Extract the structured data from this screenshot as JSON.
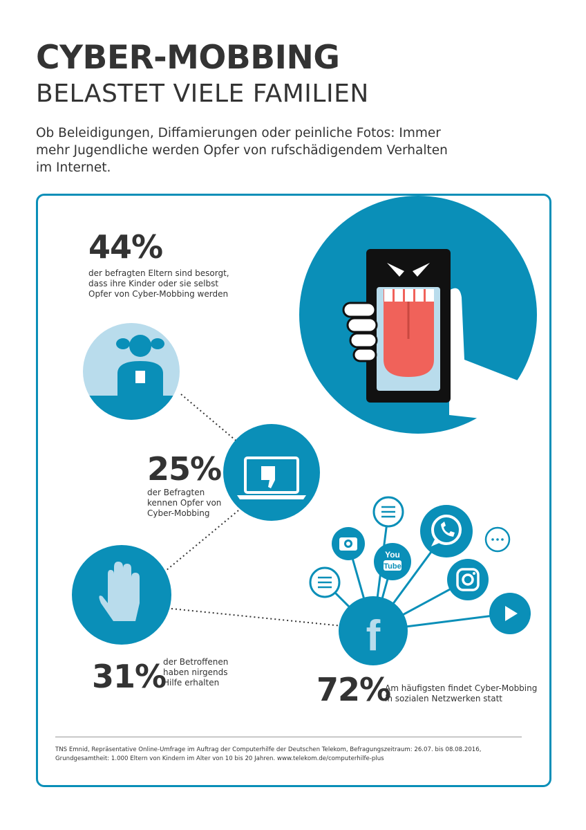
{
  "header": {
    "title": "CYBER-MOBBING",
    "subtitle": "BELASTET VIELE FAMILIEN",
    "intro": "Ob Beleidigungen, Diffamierungen oder peinliche Fotos: Immer mehr Jugendliche werden Opfer von rufschädigendem Verhalten im Internet."
  },
  "stats": [
    {
      "value": "44%",
      "text": "der befragten Eltern sind besorgt, dass ihre Kinder oder sie selbst Opfer von Cyber-Mobbing werden"
    },
    {
      "value": "25%",
      "text": "der Befragten kennen Opfer von Cyber-Mobbing"
    },
    {
      "value": "31%",
      "text": "der Betroffenen haben nirgends Hilfe erhalten"
    },
    {
      "value": "72%",
      "text": "Am häufigsten findet Cyber-Mobbing in sozialen Netzwerken statt"
    }
  ],
  "icons": {
    "youtube_line1": "You",
    "youtube_line2": "Tube",
    "facebook": "f"
  },
  "colors": {
    "accent": "#0a8fb8",
    "light": "#b9dcec",
    "tongue": "#f0625a",
    "dark": "#333333"
  },
  "footer": "TNS Emnid, Repräsentative Online-Umfrage im Auftrag der Computerhilfe der Deutschen Telekom, Befragungszeitraum: 26.07. bis 08.08.2016, Grundgesamtheit: 1.000 Eltern von Kindern im Alter von 10 bis 20 Jahren. www.telekom.de/computerhilfe-plus"
}
